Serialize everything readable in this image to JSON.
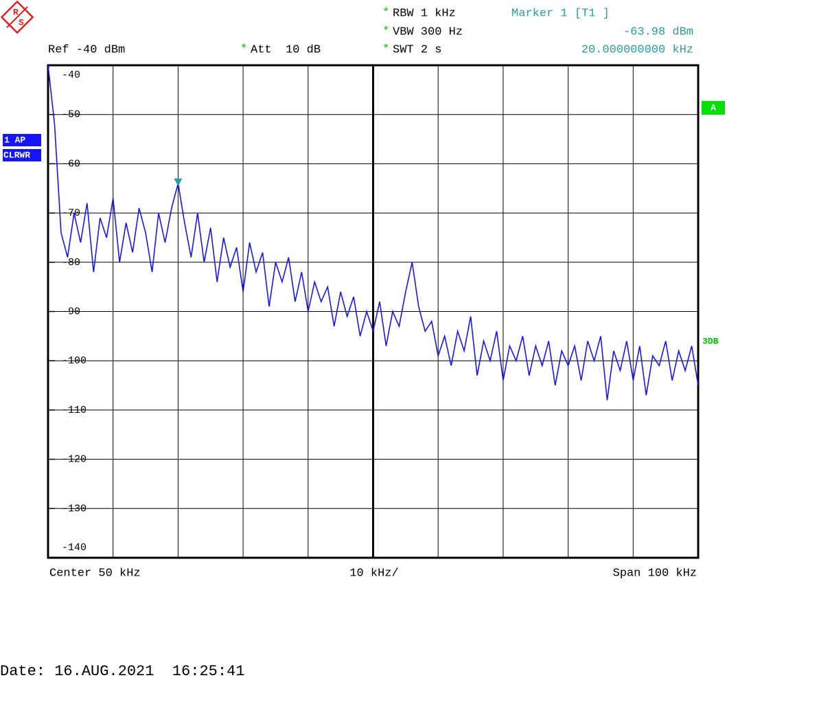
{
  "chart_data": {
    "type": "line",
    "logo_letters": [
      "R",
      "S"
    ],
    "setting_mark": "*",
    "ref_level": "Ref -40 dBm",
    "attenuation": "Att  10 dB",
    "rbw": "RBW 1 kHz",
    "vbw": "VBW 300 Hz",
    "swt": "SWT 2 s",
    "trace_label": "1 AP",
    "trace_mode": "CLRWR",
    "trace_tag": "A",
    "side_tag": "3DB",
    "center": "Center 50 kHz",
    "division": "10 kHz/",
    "span": "Span 100 kHz",
    "date": "Date: 16.AUG.2021  16:25:41",
    "marker": {
      "name": "Marker 1 [T1 ]",
      "x": 20,
      "y": -63.98,
      "x_label": "20.000000000 kHz",
      "y_label": "-63.98 dBm",
      "color": "#20a0a0"
    },
    "xlim": [
      0,
      100
    ],
    "xticks": [
      0,
      10,
      20,
      30,
      40,
      50,
      60,
      70,
      80,
      90,
      100
    ],
    "ylim": [
      -140,
      -40
    ],
    "yticks": [
      -40,
      -50,
      -60,
      -70,
      -80,
      -90,
      -100,
      -110,
      -120,
      -130,
      -140
    ],
    "grid": true,
    "series": [
      {
        "name": "1 AP",
        "color": "#1414ff",
        "x": [
          0,
          1,
          2,
          3,
          4,
          5,
          6,
          7,
          8,
          9,
          10,
          11,
          12,
          13,
          14,
          15,
          16,
          17,
          18,
          19,
          20,
          21,
          22,
          23,
          24,
          25,
          26,
          27,
          28,
          29,
          30,
          31,
          32,
          33,
          34,
          35,
          36,
          37,
          38,
          39,
          40,
          41,
          42,
          43,
          44,
          45,
          46,
          47,
          48,
          49,
          50,
          51,
          52,
          53,
          54,
          55,
          56,
          57,
          58,
          59,
          60,
          61,
          62,
          63,
          64,
          65,
          66,
          67,
          68,
          69,
          70,
          71,
          72,
          73,
          74,
          75,
          76,
          77,
          78,
          79,
          80,
          81,
          82,
          83,
          84,
          85,
          86,
          87,
          88,
          89,
          90,
          91,
          92,
          93,
          94,
          95,
          96,
          97,
          98,
          99,
          100
        ],
        "values": [
          -40,
          -52,
          -74,
          -79,
          -70,
          -76,
          -68,
          -82,
          -71,
          -75,
          -67,
          -80,
          -72,
          -78,
          -69,
          -74,
          -82,
          -70,
          -76,
          -69,
          -63.98,
          -72,
          -79,
          -70,
          -80,
          -73,
          -84,
          -75,
          -81,
          -77,
          -86,
          -76,
          -82,
          -78,
          -89,
          -80,
          -84,
          -79,
          -88,
          -82,
          -90,
          -84,
          -88,
          -85,
          -93,
          -86,
          -91,
          -87,
          -95,
          -90,
          -94,
          -88,
          -97,
          -90,
          -93,
          -86,
          -80,
          -89,
          -94,
          -92,
          -99,
          -95,
          -101,
          -94,
          -98,
          -91,
          -103,
          -96,
          -100,
          -94,
          -104,
          -97,
          -100,
          -95,
          -103,
          -97,
          -101,
          -96,
          -105,
          -98,
          -101,
          -97,
          -104,
          -96,
          -100,
          -95,
          -108,
          -98,
          -102,
          -96,
          -104,
          -97,
          -107,
          -99,
          -101,
          -96,
          -104,
          -98,
          -102,
          -97,
          -105
        ]
      }
    ]
  }
}
